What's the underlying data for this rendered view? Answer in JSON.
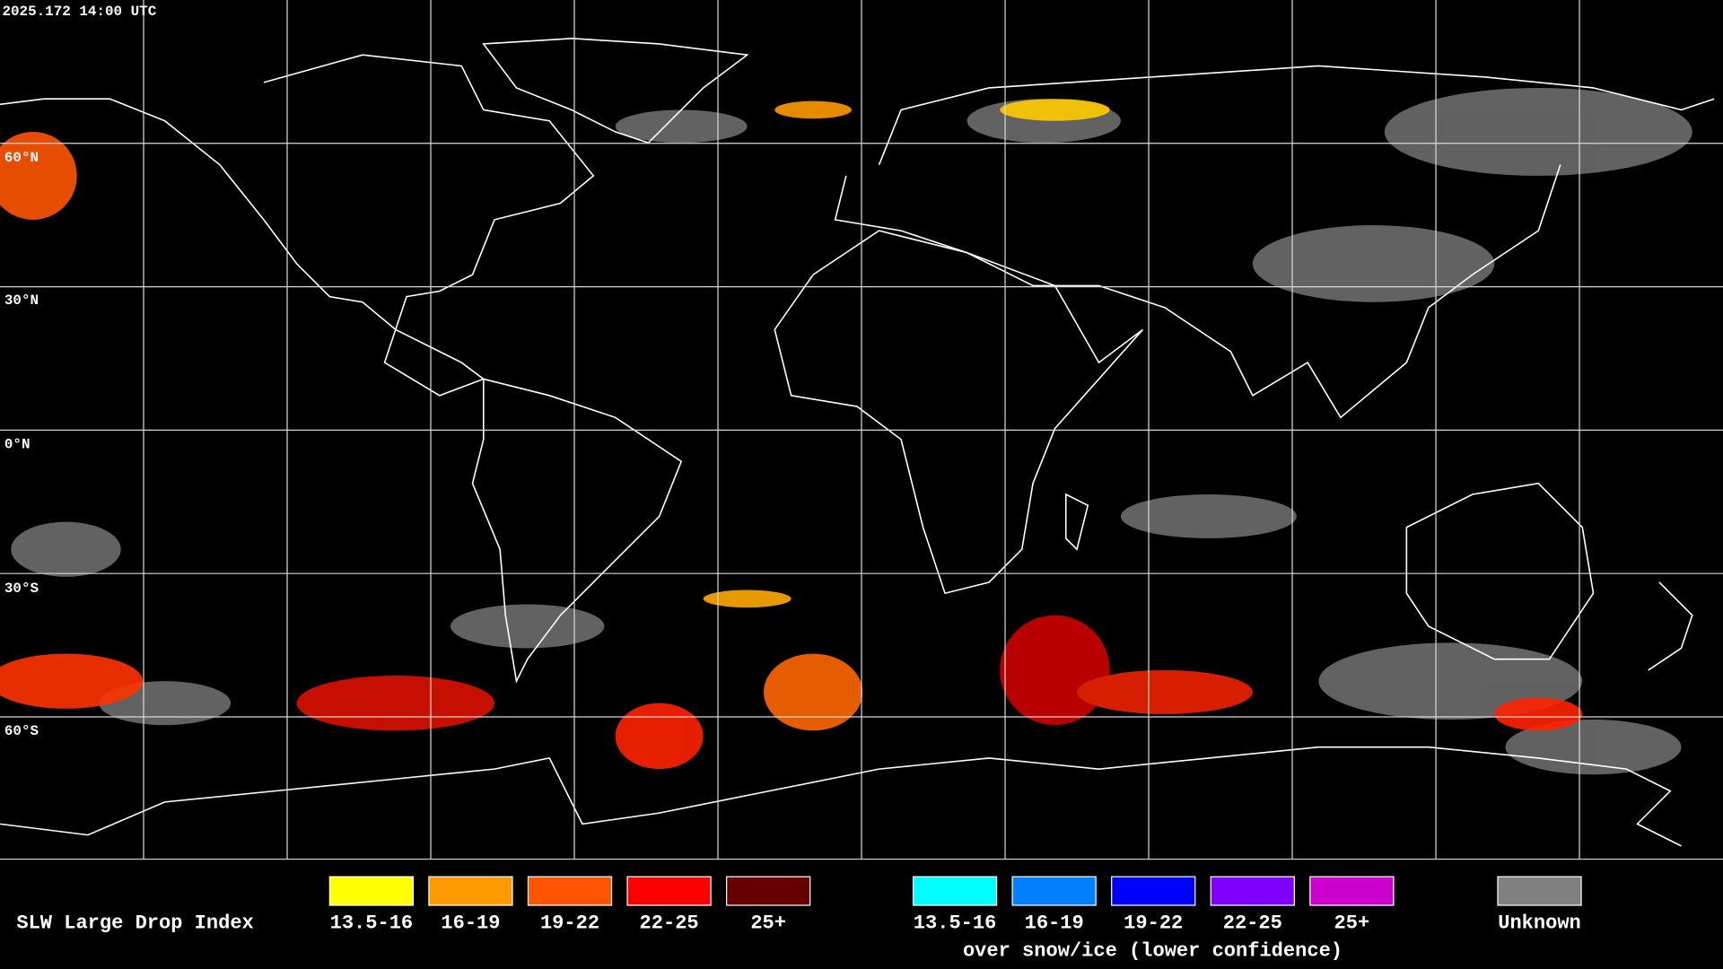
{
  "timestamp": "2025.172 14:00 UTC",
  "latitude_labels": [
    "60°N",
    "30°N",
    "0°N",
    "30°S",
    "60°S"
  ],
  "legend": {
    "title": "SLW Large Drop Index",
    "groups": [
      {
        "items": [
          {
            "label": "13.5-16",
            "color": "#ffff00"
          },
          {
            "label": "16-19",
            "color": "#ff9900"
          },
          {
            "label": "19-22",
            "color": "#ff5500"
          },
          {
            "label": "22-25",
            "color": "#ff0000"
          },
          {
            "label": "25+",
            "color": "#660000"
          }
        ]
      },
      {
        "caption": "over snow/ice (lower confidence)",
        "items": [
          {
            "label": "13.5-16",
            "color": "#00ffff"
          },
          {
            "label": "16-19",
            "color": "#0080ff"
          },
          {
            "label": "19-22",
            "color": "#0000ff"
          },
          {
            "label": "22-25",
            "color": "#8000ff"
          },
          {
            "label": "25+",
            "color": "#cc00cc"
          }
        ]
      },
      {
        "items": [
          {
            "label": "Unknown",
            "color": "#808080"
          }
        ]
      }
    ]
  }
}
